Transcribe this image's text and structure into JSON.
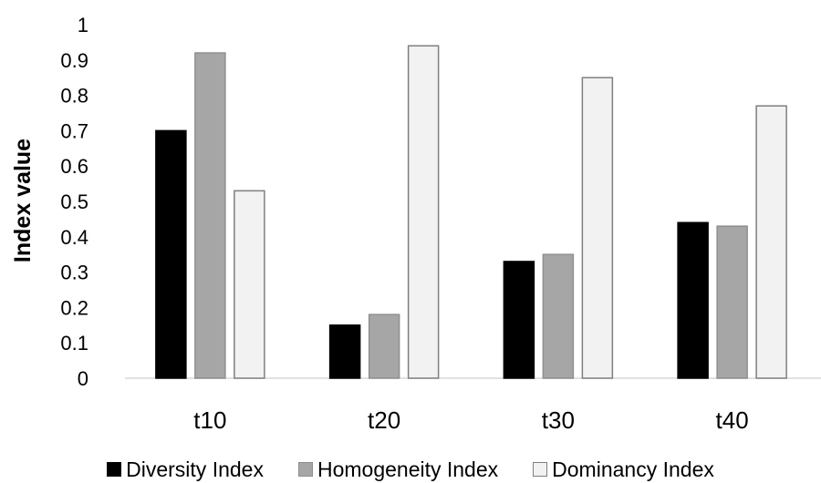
{
  "chart_data": {
    "type": "bar",
    "title": "",
    "xlabel": "",
    "ylabel": "Index value",
    "ylim": [
      0,
      1
    ],
    "yticks": [
      "0",
      "0.1",
      "0.2",
      "0.3",
      "0.4",
      "0.5",
      "0.6",
      "0.7",
      "0.8",
      "0.9",
      "1"
    ],
    "grid": false,
    "legend_position": "bottom",
    "categories": [
      "t10",
      "t20",
      "t30",
      "t40"
    ],
    "series": [
      {
        "name": "Diversity Index",
        "values": [
          0.7,
          0.15,
          0.33,
          0.44
        ],
        "color": "#000000",
        "stroke": "#000000"
      },
      {
        "name": "Homogeneity Index",
        "values": [
          0.92,
          0.18,
          0.35,
          0.43
        ],
        "color": "#a6a6a6",
        "stroke": "#8f8f8f"
      },
      {
        "name": "Dominancy Index",
        "values": [
          0.53,
          0.94,
          0.85,
          0.77
        ],
        "color": "#f2f2f2",
        "stroke": "#7f7f7f"
      }
    ]
  }
}
